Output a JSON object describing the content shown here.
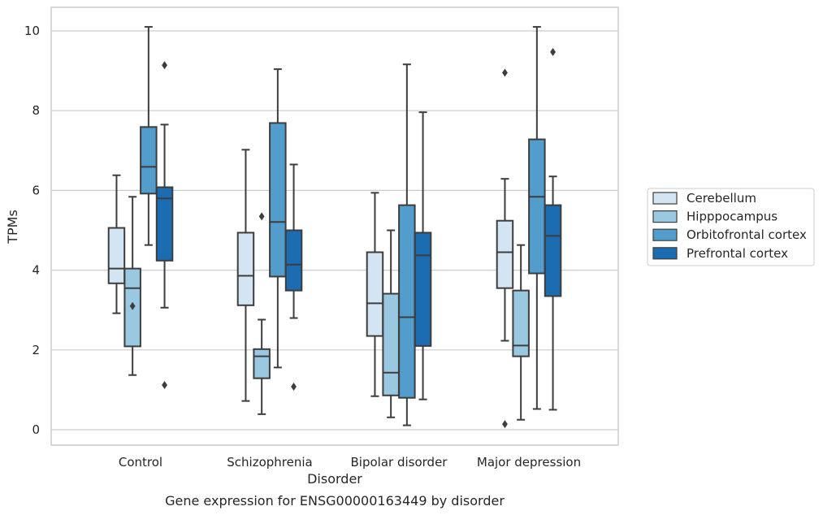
{
  "chart_data": {
    "type": "boxplot",
    "title": "",
    "caption": "Gene expression for ENSG00000163449 by disorder",
    "xlabel": "Disorder",
    "ylabel": "TPMs",
    "ylim": [
      -0.35,
      10.6
    ],
    "yticks": [
      0,
      2,
      4,
      6,
      8,
      10
    ],
    "grid": "horizontal",
    "legend_placement": "right",
    "categories": [
      "Control",
      "Schizophrenia",
      "Bipolar disorder",
      "Major depression"
    ],
    "series": [
      {
        "name": "Cerebellum",
        "color": "#d3e4f3",
        "boxes": [
          {
            "whisker_low": 2.92,
            "q1": 3.67,
            "median": 4.04,
            "q3": 5.06,
            "whisker_high": 6.38,
            "outliers": []
          },
          {
            "whisker_low": 0.72,
            "q1": 3.12,
            "median": 3.86,
            "q3": 4.94,
            "whisker_high": 7.02,
            "outliers": []
          },
          {
            "whisker_low": 0.84,
            "q1": 2.35,
            "median": 3.17,
            "q3": 4.45,
            "whisker_high": 5.94,
            "outliers": []
          },
          {
            "whisker_low": 2.23,
            "q1": 3.55,
            "median": 4.45,
            "q3": 5.24,
            "whisker_high": 6.29,
            "outliers": [
              8.95,
              0.14
            ]
          }
        ]
      },
      {
        "name": "Hipppocampus",
        "color": "#9ac8e0",
        "boxes": [
          {
            "whisker_low": 1.37,
            "q1": 2.09,
            "median": 3.55,
            "q3": 4.04,
            "whisker_high": 5.84,
            "outliers": [
              3.1
            ]
          },
          {
            "whisker_low": 0.39,
            "q1": 1.29,
            "median": 1.84,
            "q3": 2.02,
            "whisker_high": 2.76,
            "outliers": [
              5.35
            ]
          },
          {
            "whisker_low": 0.31,
            "q1": 0.86,
            "median": 1.43,
            "q3": 3.41,
            "whisker_high": 5.0,
            "outliers": []
          },
          {
            "whisker_low": 0.25,
            "q1": 1.84,
            "median": 2.11,
            "q3": 3.49,
            "whisker_high": 4.63,
            "outliers": []
          }
        ]
      },
      {
        "name": "Orbitofrontal cortex",
        "color": "#529dcc",
        "boxes": [
          {
            "whisker_low": 4.63,
            "q1": 5.92,
            "median": 6.59,
            "q3": 7.59,
            "whisker_high": 10.1,
            "outliers": []
          },
          {
            "whisker_low": 1.56,
            "q1": 3.84,
            "median": 5.21,
            "q3": 7.69,
            "whisker_high": 9.04,
            "outliers": []
          },
          {
            "whisker_low": 0.11,
            "q1": 0.8,
            "median": 2.82,
            "q3": 5.63,
            "whisker_high": 9.16,
            "outliers": []
          },
          {
            "whisker_low": 0.52,
            "q1": 3.92,
            "median": 5.84,
            "q3": 7.28,
            "whisker_high": 10.1,
            "outliers": []
          }
        ]
      },
      {
        "name": "Prefrontal cortex",
        "color": "#1c6cb1",
        "boxes": [
          {
            "whisker_low": 3.06,
            "q1": 4.24,
            "median": 5.8,
            "q3": 6.08,
            "whisker_high": 7.65,
            "outliers": [
              9.14,
              1.12
            ]
          },
          {
            "whisker_low": 2.8,
            "q1": 3.49,
            "median": 4.14,
            "q3": 5.0,
            "whisker_high": 6.65,
            "outliers": [
              1.08
            ]
          },
          {
            "whisker_low": 0.76,
            "q1": 2.1,
            "median": 4.37,
            "q3": 4.94,
            "whisker_high": 7.96,
            "outliers": []
          },
          {
            "whisker_low": 0.5,
            "q1": 3.35,
            "median": 4.86,
            "q3": 5.63,
            "whisker_high": 6.35,
            "outliers": [
              9.47
            ]
          }
        ]
      }
    ]
  }
}
